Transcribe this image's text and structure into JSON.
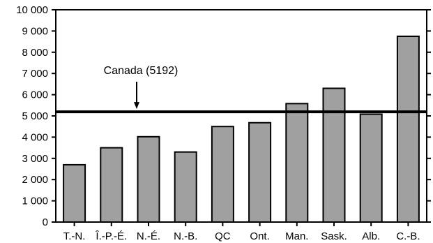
{
  "chart_data": {
    "type": "bar",
    "categories": [
      "T.-N.",
      "Î.-P.-É.",
      "N.-É.",
      "N.-B.",
      "QC",
      "Ont.",
      "Man.",
      "Sask.",
      "Alb.",
      "C.-B."
    ],
    "values": [
      2700,
      3500,
      4020,
      3300,
      4500,
      4680,
      5580,
      6300,
      5080,
      8750
    ],
    "title": "",
    "xlabel": "",
    "ylabel": "",
    "ylim": [
      0,
      10000
    ],
    "yticks": [
      0,
      1000,
      2000,
      3000,
      4000,
      5000,
      6000,
      7000,
      8000,
      9000,
      10000
    ],
    "ytick_labels": [
      "0",
      "1 000",
      "2 000",
      "3 000",
      "4 000",
      "5 000",
      "6 000",
      "7 000",
      "8 000",
      "9 000",
      "10 000"
    ],
    "grid": false,
    "legend": "none",
    "reference_line": {
      "value": 5192,
      "label": "Canada (5192)"
    },
    "colors": {
      "bar_fill": "#a0a0a0",
      "bar_stroke": "#000000",
      "axis": "#000000"
    }
  }
}
